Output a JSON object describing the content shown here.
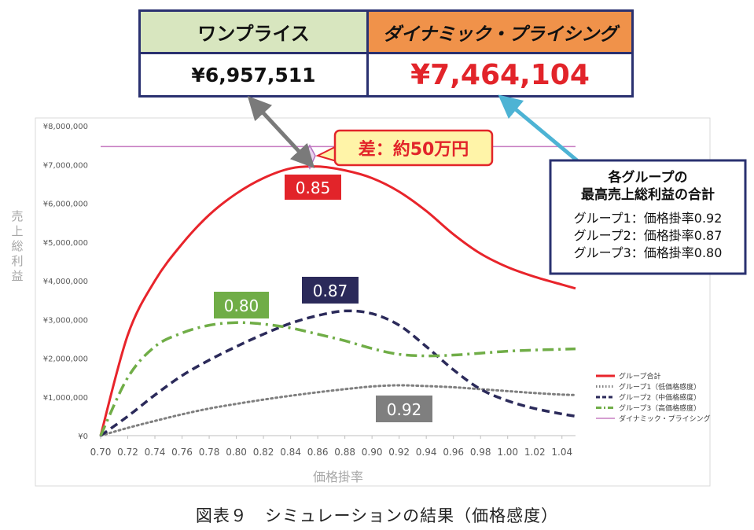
{
  "comparison_table": {
    "one_price_label": "ワンプライス",
    "dynamic_pricing_label": "ダイナミック・プライシング",
    "one_price_value": "¥6,957,511",
    "dynamic_pricing_value": "¥7,464,104"
  },
  "callouts": {
    "difference": "差：約50万円",
    "info_title_1": "各グループの",
    "info_title_2": "最高売上総利益の合計",
    "info_line_1": "グループ1：価格掛率0.92",
    "info_line_2": "グループ2：価格掛率0.87",
    "info_line_3": "グループ3：価格掛率0.80",
    "label_total": "0.85",
    "label_g2": "0.87",
    "label_g3": "0.80",
    "label_g1": "0.92"
  },
  "caption": "図表９　シミュレーションの結果（価格感度）",
  "colors": {
    "total": "#e8242b",
    "g1": "#7f7f7f",
    "g2": "#2b2a5a",
    "g3": "#70ad47",
    "dynamic": "#c77ec2",
    "frame": "#2a3170"
  },
  "chart_data": {
    "type": "line",
    "xlabel": "価格掛率",
    "ylabel": "売上総利益",
    "xlim": [
      0.7,
      1.05
    ],
    "ylim": [
      0,
      8000000
    ],
    "x_ticks": [
      "0.70",
      "0.72",
      "0.74",
      "0.76",
      "0.78",
      "0.80",
      "0.82",
      "0.84",
      "0.86",
      "0.88",
      "0.90",
      "0.92",
      "0.94",
      "0.96",
      "0.98",
      "1.00",
      "1.02",
      "1.04"
    ],
    "y_ticks": [
      "¥0",
      "¥1,000,000",
      "¥2,000,000",
      "¥3,000,000",
      "¥4,000,000",
      "¥5,000,000",
      "¥6,000,000",
      "¥7,000,000",
      "¥8,000,000"
    ],
    "x": [
      0.7,
      0.72,
      0.74,
      0.76,
      0.78,
      0.8,
      0.82,
      0.84,
      0.86,
      0.88,
      0.9,
      0.92,
      0.94,
      0.96,
      0.98,
      1.0,
      1.02,
      1.04,
      1.05
    ],
    "series": [
      {
        "name": "グループ合計",
        "key": "total",
        "style": "solid",
        "values": [
          0,
          2600000,
          4000000,
          4950000,
          5700000,
          6250000,
          6650000,
          6900000,
          6950000,
          6850000,
          6650000,
          6300000,
          5800000,
          5200000,
          4700000,
          4350000,
          4100000,
          3900000,
          3800000
        ]
      },
      {
        "name": "グループ1（低価格感度）",
        "key": "g1",
        "style": "dotted",
        "values": [
          0,
          200000,
          380000,
          550000,
          700000,
          820000,
          930000,
          1030000,
          1120000,
          1200000,
          1270000,
          1300000,
          1280000,
          1250000,
          1200000,
          1150000,
          1100000,
          1060000,
          1050000
        ]
      },
      {
        "name": "グループ2（中価格感度）",
        "key": "g2",
        "style": "dashed",
        "values": [
          0,
          500000,
          1050000,
          1550000,
          1950000,
          2300000,
          2620000,
          2900000,
          3100000,
          3220000,
          3150000,
          2850000,
          2300000,
          1700000,
          1200000,
          900000,
          700000,
          560000,
          500000
        ]
      },
      {
        "name": "グループ3（高価格感度）",
        "key": "g3",
        "style": "dashdot",
        "values": [
          0,
          1500000,
          2300000,
          2650000,
          2850000,
          2920000,
          2880000,
          2780000,
          2620000,
          2450000,
          2250000,
          2100000,
          2060000,
          2080000,
          2130000,
          2180000,
          2210000,
          2230000,
          2240000
        ]
      },
      {
        "name": "ダイナミック・プライシング",
        "key": "dynamic",
        "style": "solid-thin",
        "values": [
          7464104,
          7464104,
          7464104,
          7464104,
          7464104,
          7464104,
          7464104,
          7464104,
          7464104,
          7464104,
          7464104,
          7464104,
          7464104,
          7464104,
          7464104,
          7464104,
          7464104,
          7464104,
          7464104
        ]
      }
    ],
    "legend_position": "right",
    "grid": false
  }
}
